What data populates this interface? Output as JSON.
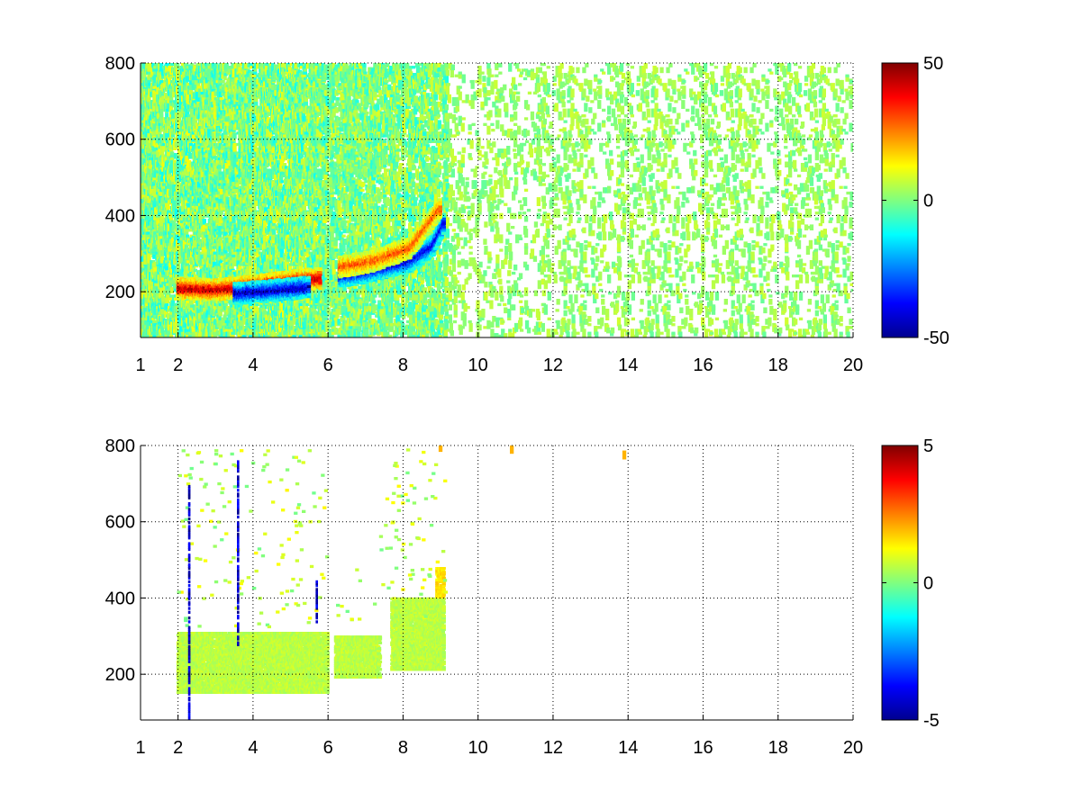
{
  "chart_data": [
    {
      "type": "heatmap",
      "title": "",
      "xlabel": "",
      "ylabel": "",
      "xlim": [
        1,
        20
      ],
      "ylim": [
        80,
        800
      ],
      "xticks": [
        1,
        2,
        4,
        6,
        8,
        10,
        12,
        14,
        16,
        18,
        20
      ],
      "xtick_labels": [
        "1",
        "2",
        "4",
        "6",
        "8",
        "10",
        "12",
        "14",
        "16",
        "18",
        "20"
      ],
      "yticks": [
        200,
        400,
        600,
        800
      ],
      "ytick_labels": [
        "200",
        "400",
        "600",
        "800"
      ],
      "grid": true,
      "grid_style": "dotted",
      "colormap": "jet",
      "clim": [
        -50,
        50
      ],
      "colorbar_ticks": [
        -50,
        0,
        50
      ],
      "colorbar_labels": [
        "-50",
        "0",
        "50"
      ],
      "features": [
        {
          "x": [
            2.0,
            3.0,
            4.0,
            5.0,
            5.8
          ],
          "y": [
            210,
            205,
            215,
            228,
            235
          ],
          "value": 45
        },
        {
          "x": [
            3.5,
            4.5,
            5.5
          ],
          "y": [
            195,
            203,
            212
          ],
          "value": -45
        },
        {
          "x": [
            6.3,
            7.0,
            7.6,
            8.2,
            8.8,
            9.1
          ],
          "y": [
            240,
            250,
            265,
            280,
            320,
            380
          ],
          "value": -40
        },
        {
          "x": [
            6.3,
            7.2,
            8.2,
            9.0
          ],
          "y": [
            265,
            280,
            315,
            420
          ],
          "value": 30
        }
      ],
      "noise_columns": [
        {
          "x": [
            1.0,
            6.0
          ],
          "y": [
            80,
            800
          ],
          "density": 0.45,
          "values": [
            -12,
            12
          ]
        },
        {
          "x": [
            6.0,
            9.2
          ],
          "y": [
            80,
            800
          ],
          "density": 0.3,
          "values": [
            -10,
            10
          ]
        },
        {
          "x": [
            9.2,
            20.0
          ],
          "y": [
            80,
            800
          ],
          "density": 0.07,
          "values": [
            -3,
            8
          ]
        }
      ],
      "layout_rows": [
        3,
        1,
        3,
        1,
        3
      ],
      "layout_cols": [
        2,
        1
      ]
    },
    {
      "type": "heatmap",
      "title": "",
      "xlabel": "",
      "ylabel": "",
      "xlim": [
        1,
        20
      ],
      "ylim": [
        80,
        800
      ],
      "xticks": [
        1,
        2,
        4,
        6,
        8,
        10,
        12,
        14,
        16,
        18,
        20
      ],
      "xtick_labels": [
        "1",
        "2",
        "4",
        "6",
        "8",
        "10",
        "12",
        "14",
        "16",
        "18",
        "20"
      ],
      "yticks": [
        200,
        400,
        600,
        800
      ],
      "ytick_labels": [
        "200",
        "400",
        "600",
        "800"
      ],
      "grid": true,
      "grid_style": "dotted",
      "colormap": "jet",
      "clim": [
        -5,
        5
      ],
      "colorbar_ticks": [
        -5,
        0,
        5
      ],
      "colorbar_labels": [
        "-5",
        "0",
        "5"
      ],
      "dominant_value": 0.6,
      "regions": [
        {
          "x": [
            2.0,
            6.0
          ],
          "y": [
            150,
            310
          ],
          "value": 0.6
        },
        {
          "x": [
            6.2,
            7.4
          ],
          "y": [
            190,
            300
          ],
          "value": 0.6
        },
        {
          "x": [
            7.7,
            9.1
          ],
          "y": [
            210,
            400
          ],
          "value": 0.6
        },
        {
          "x": [
            8.9,
            9.1
          ],
          "y": [
            400,
            480
          ],
          "value": 1.5
        }
      ],
      "vertical_lines": [
        {
          "x": 2.3,
          "y": [
            80,
            700
          ],
          "value": -5
        },
        {
          "x": 3.6,
          "y": [
            270,
            760
          ],
          "value": -5
        },
        {
          "x": 5.7,
          "y": [
            330,
            450
          ],
          "value": -5
        }
      ],
      "sparse_points": [
        {
          "x": 10.9,
          "y": 790,
          "value": 2
        },
        {
          "x": 13.9,
          "y": 775,
          "value": 2
        },
        {
          "x": 9.0,
          "y": 795,
          "value": 2
        }
      ]
    }
  ]
}
